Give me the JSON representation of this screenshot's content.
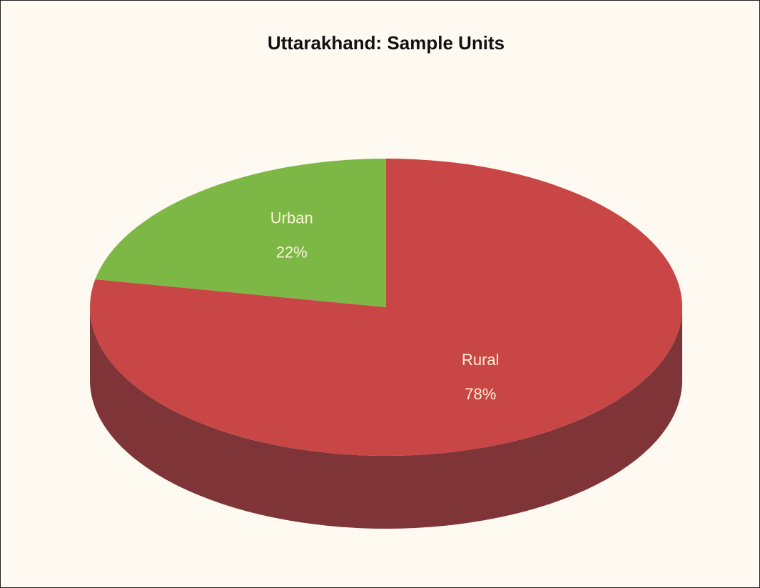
{
  "chart_data": {
    "type": "pie",
    "title": "Uttarakhand: Sample Units",
    "categories": [
      "Urban",
      "Rural"
    ],
    "values": [
      22,
      78
    ],
    "value_labels": [
      "22%",
      "78%"
    ],
    "colors": [
      "#7db846",
      "#c84646"
    ],
    "side_colors": [
      "#5e8a34",
      "#7f3538"
    ]
  }
}
